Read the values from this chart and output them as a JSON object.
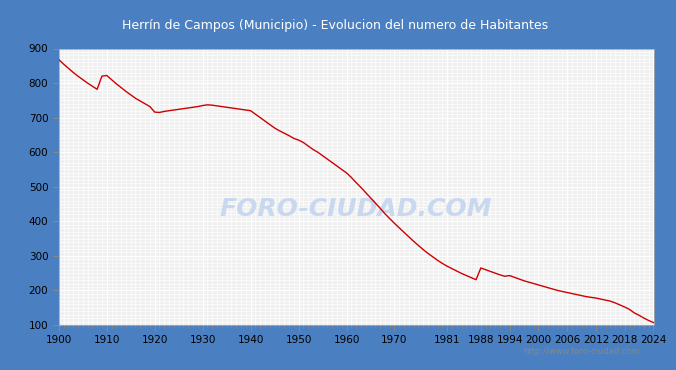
{
  "title": "Herrín de Campos (Municipio) - Evolucion del numero de Habitantes",
  "title_color": "#ffffff",
  "title_bg_color": "#4a7fc1",
  "plot_bg_color": "#f0f0f0",
  "outer_bg_color": "#ffffff",
  "line_color": "#cc0000",
  "line_width": 1.0,
  "watermark_text": "FORO-CIUDAD.COM",
  "watermark_color": "#c8d8ee",
  "url_text": "http://www.foro-ciudad.com",
  "years": [
    1900,
    1901,
    1902,
    1903,
    1904,
    1905,
    1906,
    1907,
    1908,
    1909,
    1910,
    1911,
    1912,
    1913,
    1914,
    1915,
    1916,
    1917,
    1918,
    1919,
    1920,
    1921,
    1922,
    1923,
    1924,
    1925,
    1926,
    1927,
    1928,
    1929,
    1930,
    1931,
    1932,
    1933,
    1934,
    1935,
    1936,
    1937,
    1938,
    1939,
    1940,
    1941,
    1942,
    1943,
    1944,
    1945,
    1946,
    1947,
    1948,
    1949,
    1950,
    1951,
    1952,
    1953,
    1954,
    1955,
    1956,
    1957,
    1958,
    1959,
    1960,
    1961,
    1962,
    1963,
    1964,
    1965,
    1966,
    1967,
    1968,
    1969,
    1970,
    1971,
    1972,
    1973,
    1974,
    1975,
    1976,
    1977,
    1978,
    1979,
    1980,
    1981,
    1982,
    1983,
    1984,
    1985,
    1986,
    1987,
    1988,
    1989,
    1990,
    1991,
    1992,
    1993,
    1994,
    1995,
    1996,
    1997,
    1998,
    1999,
    2000,
    2001,
    2002,
    2003,
    2004,
    2005,
    2006,
    2007,
    2008,
    2009,
    2010,
    2011,
    2012,
    2013,
    2014,
    2015,
    2016,
    2017,
    2018,
    2019,
    2020,
    2021,
    2022,
    2023,
    2024
  ],
  "population": [
    868,
    855,
    843,
    831,
    820,
    810,
    800,
    791,
    782,
    820,
    822,
    810,
    798,
    787,
    776,
    766,
    756,
    748,
    740,
    732,
    716,
    715,
    718,
    720,
    722,
    724,
    726,
    728,
    730,
    732,
    735,
    737,
    736,
    734,
    732,
    730,
    728,
    726,
    724,
    722,
    720,
    710,
    700,
    690,
    680,
    670,
    662,
    655,
    648,
    640,
    635,
    628,
    618,
    608,
    600,
    590,
    580,
    570,
    560,
    550,
    540,
    527,
    512,
    498,
    483,
    468,
    453,
    438,
    422,
    408,
    394,
    381,
    368,
    355,
    342,
    330,
    318,
    307,
    297,
    287,
    278,
    270,
    263,
    256,
    249,
    243,
    237,
    231,
    265,
    260,
    255,
    250,
    245,
    241,
    243,
    238,
    233,
    228,
    224,
    220,
    216,
    212,
    208,
    204,
    200,
    197,
    194,
    191,
    188,
    185,
    182,
    180,
    178,
    175,
    172,
    169,
    164,
    158,
    152,
    145,
    135,
    128,
    120,
    113,
    107
  ],
  "yticks": [
    100,
    200,
    300,
    400,
    500,
    600,
    700,
    800,
    900
  ],
  "xticks": [
    1900,
    1910,
    1920,
    1930,
    1940,
    1950,
    1960,
    1970,
    1981,
    1988,
    1994,
    2000,
    2006,
    2012,
    2018,
    2024
  ],
  "ylim": [
    100,
    900
  ],
  "xlim": [
    1900,
    2024
  ]
}
